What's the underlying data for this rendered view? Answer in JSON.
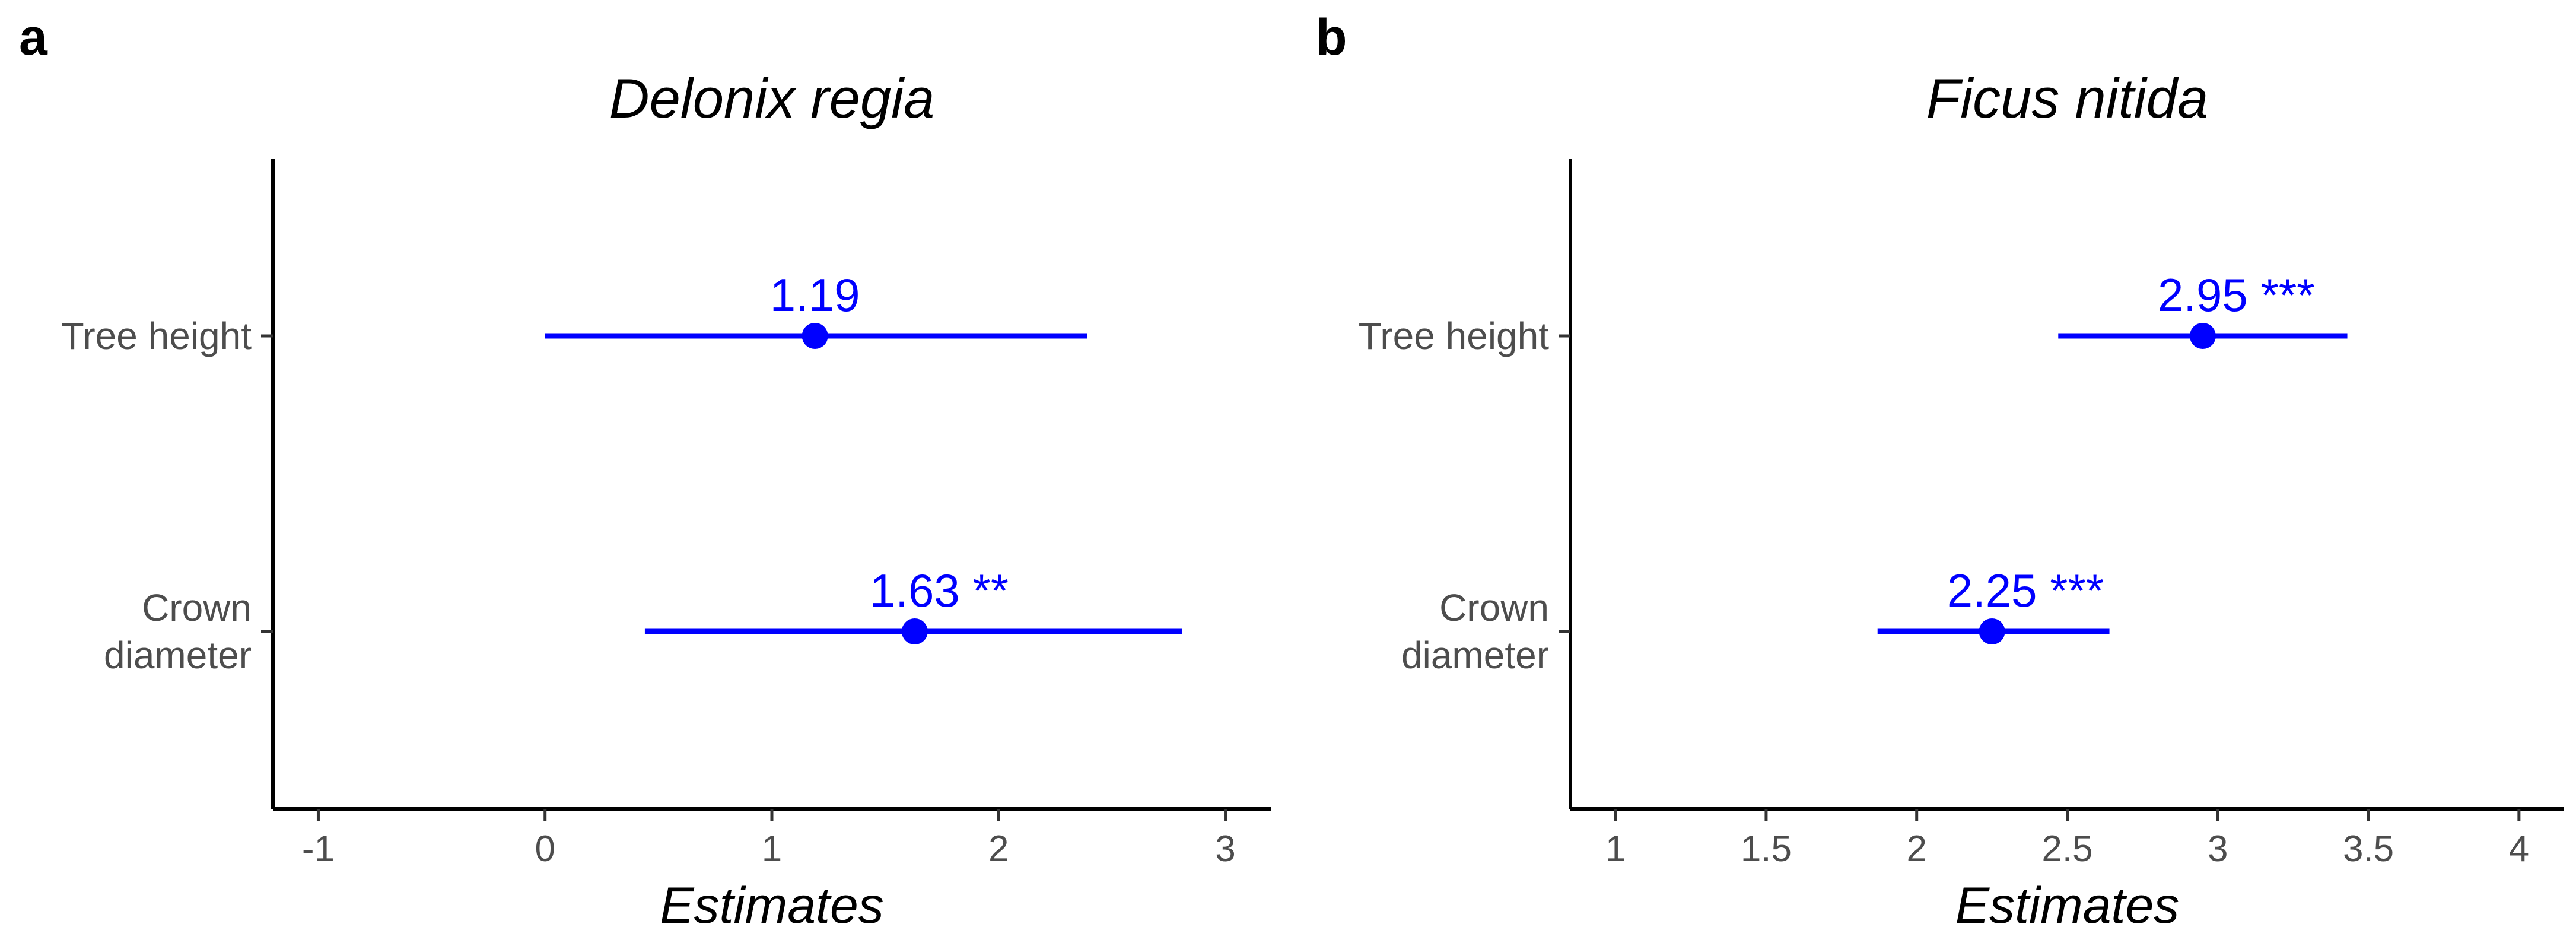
{
  "chart_data": [
    {
      "type": "forest",
      "panel_label": "a",
      "title": "Delonix regia",
      "xlabel": "Estimates",
      "ylabel": "",
      "xlim": [
        -1.2,
        3.2
      ],
      "x_ticks": [
        -1,
        0,
        1,
        2,
        3
      ],
      "x_tick_labels": [
        "-1",
        "0",
        "1",
        "2",
        "3"
      ],
      "categories": [
        "Tree height",
        "Crown diameter"
      ],
      "category_lines": [
        [
          "Tree height"
        ],
        [
          "Crown",
          "diameter"
        ]
      ],
      "estimates": [
        {
          "term": "Tree height",
          "value": 1.19,
          "lower": 0.0,
          "upper": 2.39,
          "label": "1.19"
        },
        {
          "term": "Crown diameter",
          "value": 1.63,
          "lower": 0.44,
          "upper": 2.81,
          "label": "1.63 **"
        }
      ],
      "color": "#0000ff"
    },
    {
      "type": "forest",
      "panel_label": "b",
      "title": "Ficus nitida",
      "xlabel": "Estimates",
      "ylabel": "",
      "xlim": [
        0.85,
        4.15
      ],
      "x_ticks": [
        1,
        1.5,
        2,
        2.5,
        3,
        3.5,
        4
      ],
      "x_tick_labels": [
        "1",
        "1.5",
        "2",
        "2.5",
        "3",
        "3.5",
        "4"
      ],
      "categories": [
        "Tree height",
        "Crown diameter"
      ],
      "category_lines": [
        [
          "Tree height"
        ],
        [
          "Crown",
          "diameter"
        ]
      ],
      "estimates": [
        {
          "term": "Tree height",
          "value": 2.95,
          "lower": 2.47,
          "upper": 3.43,
          "label": "2.95 ***"
        },
        {
          "term": "Crown diameter",
          "value": 2.25,
          "lower": 1.87,
          "upper": 2.64,
          "label": "2.25 ***"
        }
      ],
      "color": "#0000ff"
    }
  ]
}
